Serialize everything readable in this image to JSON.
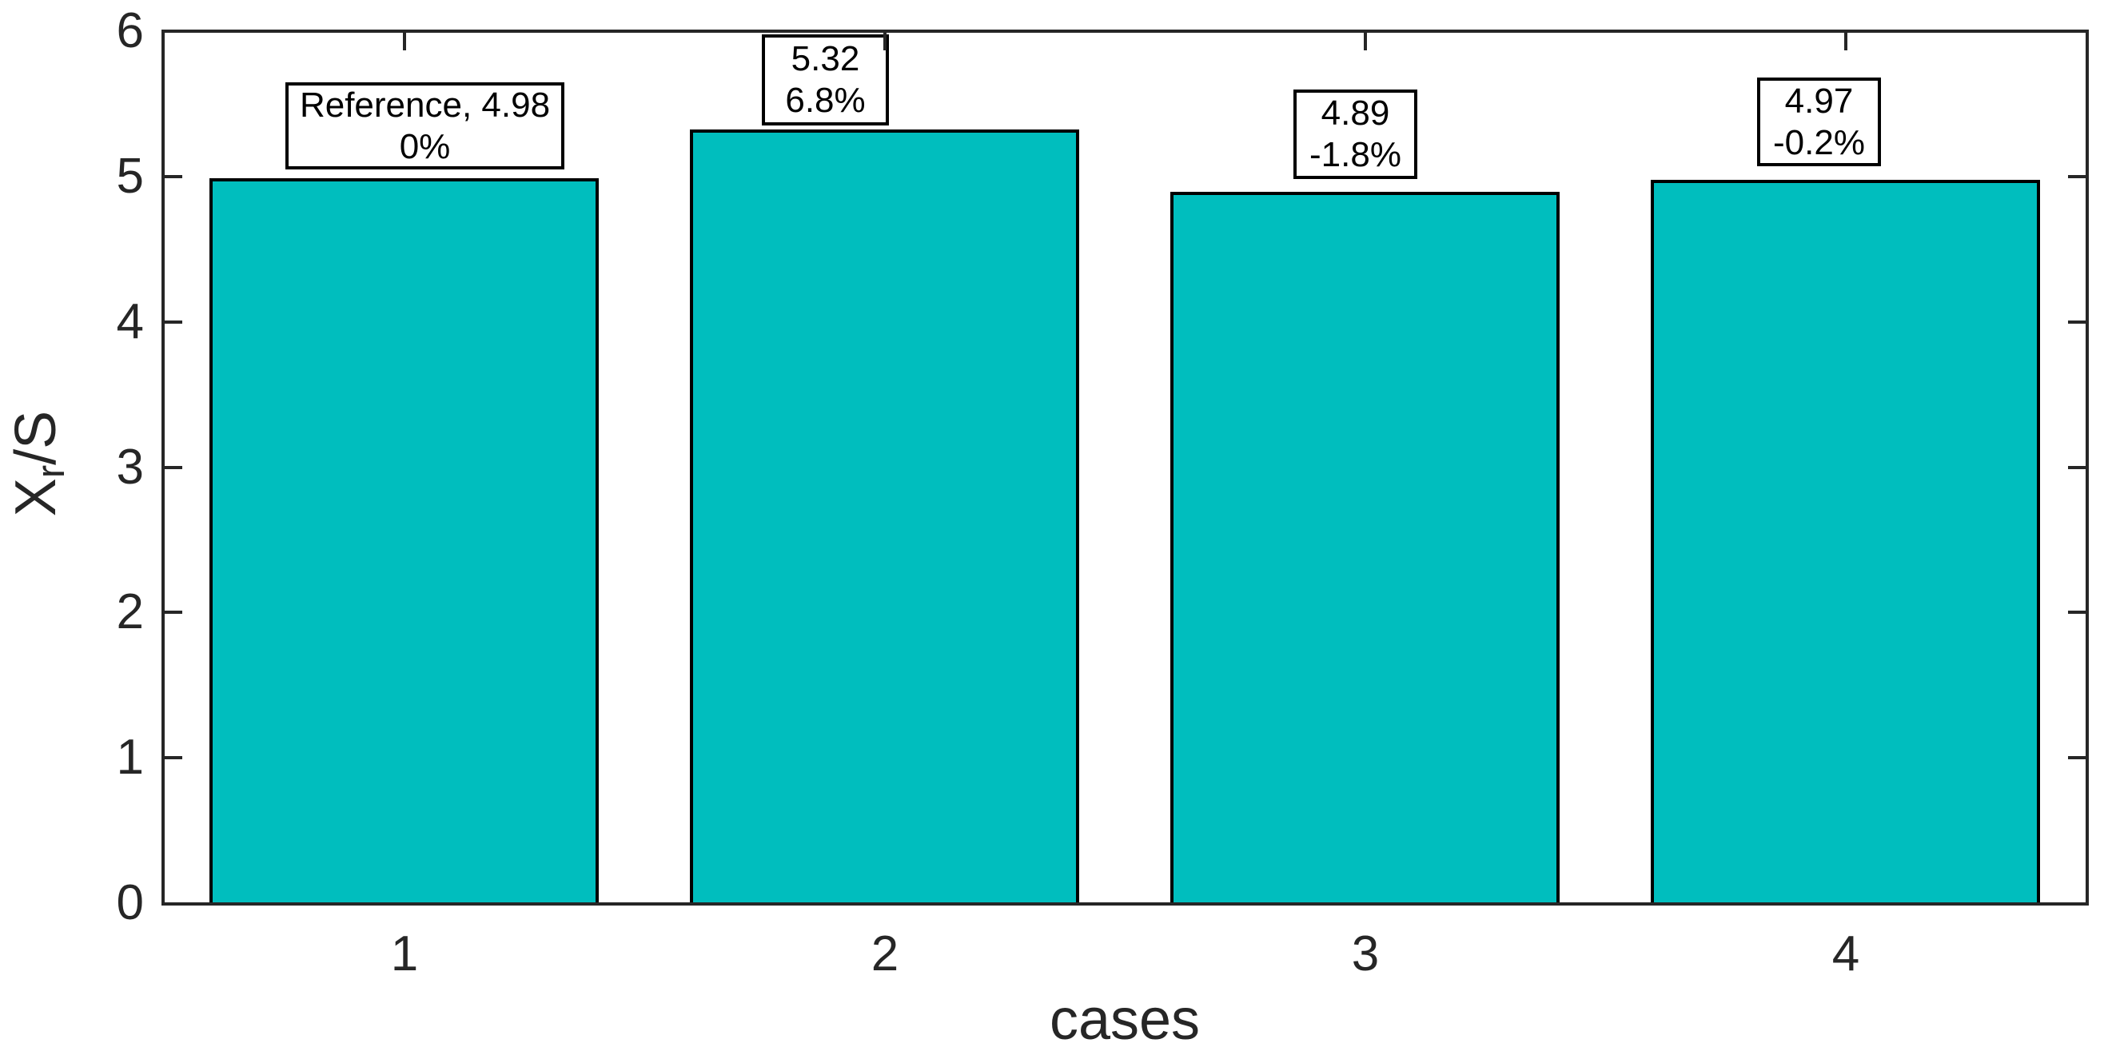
{
  "chart_data": {
    "type": "bar",
    "title": "",
    "xlabel": "cases",
    "ylabel": "X_r/S",
    "ylabel_parts": {
      "base": "X",
      "sub": "r",
      "rest": "/S"
    },
    "categories": [
      "1",
      "2",
      "3",
      "4"
    ],
    "values": [
      4.98,
      5.32,
      4.89,
      4.97
    ],
    "annotations": [
      {
        "value_line": "Reference, 4.98",
        "percent_line": "0%"
      },
      {
        "value_line": "5.32",
        "percent_line": "6.8%"
      },
      {
        "value_line": "4.89",
        "percent_line": "-1.8%"
      },
      {
        "value_line": "4.97",
        "percent_line": "-0.2%"
      }
    ],
    "ylim": [
      0,
      6
    ],
    "ytick_labels": [
      "0",
      "1",
      "2",
      "3",
      "4",
      "5",
      "6"
    ],
    "xtick_labels": [
      "1",
      "2",
      "3",
      "4"
    ],
    "grid": false,
    "legend": false,
    "bar_color": "#00BEBE",
    "bar_edge_color": "#000000",
    "axis_color": "#262626",
    "background_color": "#FFFFFF"
  }
}
